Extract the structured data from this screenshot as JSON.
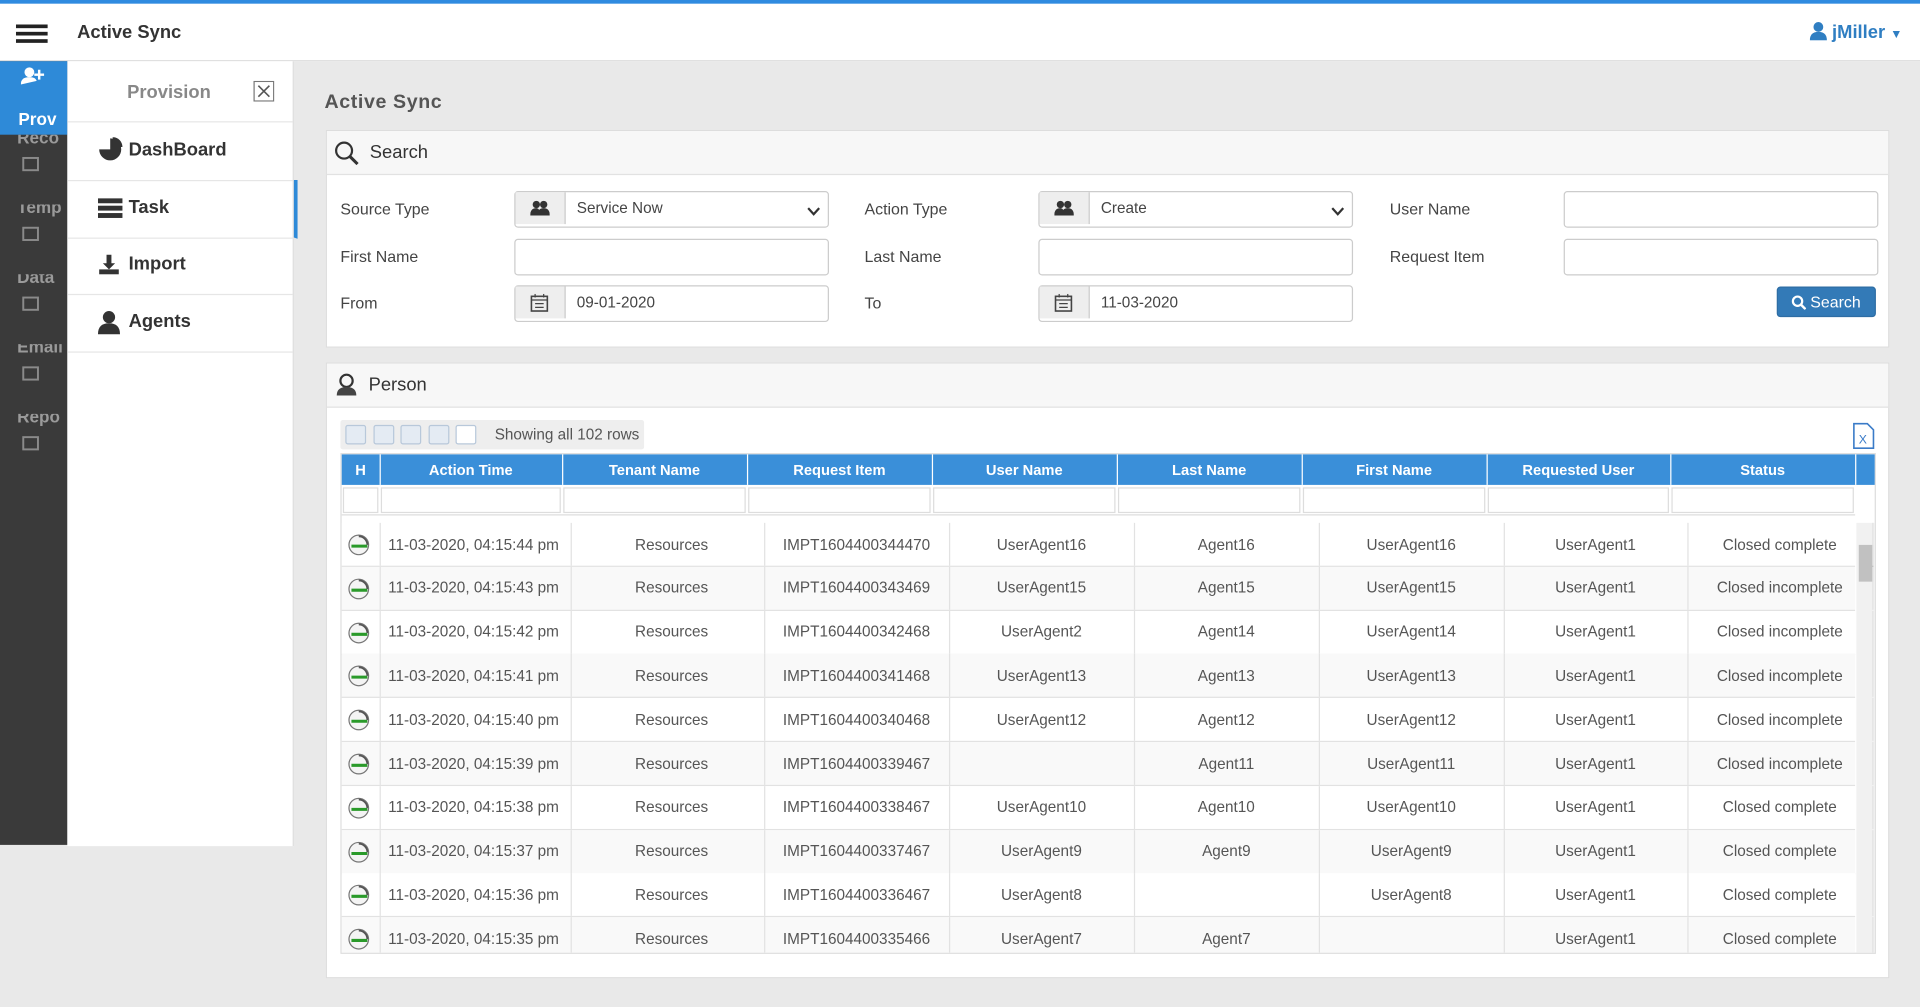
{
  "header": {
    "app_title": "Active Sync",
    "user": "jMiller"
  },
  "rail": [
    "Prov",
    "Reco",
    "Temp",
    "Data",
    "Email",
    "Repo"
  ],
  "submenu": {
    "title": "Provision",
    "items": [
      "DashBoard",
      "Task",
      "Import",
      "Agents"
    ]
  },
  "page_title": "Active Sync",
  "search": {
    "title": "Search",
    "fields": [
      {
        "label": "Source Type",
        "value": "Service Now"
      },
      {
        "label": "Action Type",
        "value": "Create"
      },
      {
        "label": "User Name"
      },
      {
        "label": "First Name"
      },
      {
        "label": "Last Name"
      },
      {
        "label": "Request Item"
      },
      {
        "label": "From",
        "value": "09-01-2020"
      },
      {
        "label": "To",
        "value": "11-03-2020"
      }
    ],
    "button": "Search"
  },
  "person": {
    "title": "Person",
    "status": "Showing all 102 rows",
    "columns": [
      "H",
      "Action Time",
      "Tenant Name",
      "Request Item",
      "User Name",
      "Last Name",
      "First Name",
      "Requested User",
      "Status"
    ],
    "rows": [
      [
        "11-03-2020, 04:15:44 pm",
        "Resources",
        "IMPT1604400344470",
        "UserAgent16",
        "Agent16",
        "UserAgent16",
        "UserAgent1",
        "Closed complete"
      ],
      [
        "11-03-2020, 04:15:43 pm",
        "Resources",
        "IMPT1604400343469",
        "UserAgent15",
        "Agent15",
        "UserAgent15",
        "UserAgent1",
        "Closed incomplete"
      ],
      [
        "11-03-2020, 04:15:42 pm",
        "Resources",
        "IMPT1604400342468",
        "UserAgent2",
        "Agent14",
        "UserAgent14",
        "UserAgent1",
        "Closed incomplete"
      ],
      [
        "11-03-2020, 04:15:41 pm",
        "Resources",
        "IMPT1604400341468",
        "UserAgent13",
        "Agent13",
        "UserAgent13",
        "UserAgent1",
        "Closed incomplete"
      ],
      [
        "11-03-2020, 04:15:40 pm",
        "Resources",
        "IMPT1604400340468",
        "UserAgent12",
        "Agent12",
        "UserAgent12",
        "UserAgent1",
        "Closed incomplete"
      ],
      [
        "11-03-2020, 04:15:39 pm",
        "Resources",
        "IMPT1604400339467",
        null,
        "Agent11",
        "UserAgent11",
        "UserAgent1",
        "Closed incomplete"
      ],
      [
        "11-03-2020, 04:15:38 pm",
        "Resources",
        "IMPT1604400338467",
        "UserAgent10",
        "Agent10",
        "UserAgent10",
        "UserAgent1",
        "Closed complete"
      ],
      [
        "11-03-2020, 04:15:37 pm",
        "Resources",
        "IMPT1604400337467",
        "UserAgent9",
        "Agent9",
        "UserAgent9",
        "UserAgent1",
        "Closed complete"
      ],
      [
        "11-03-2020, 04:15:36 pm",
        "Resources",
        "IMPT1604400336467",
        "UserAgent8",
        null,
        "UserAgent8",
        "UserAgent1",
        "Closed complete"
      ],
      [
        "11-03-2020, 04:15:35 pm",
        "Resources",
        "IMPT1604400335466",
        "UserAgent7",
        "Agent7",
        null,
        "UserAgent1",
        "Closed complete"
      ]
    ]
  }
}
